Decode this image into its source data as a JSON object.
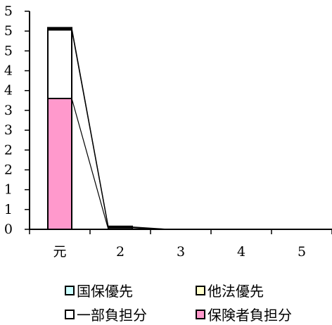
{
  "chart_data": {
    "type": "bar",
    "stacked": true,
    "categories": [
      "元",
      "2",
      "3",
      "4",
      "5"
    ],
    "y_tick_labels": [
      "0",
      "1",
      "1",
      "2",
      "2",
      "3",
      "3",
      "4",
      "4",
      "5",
      "5",
      "5"
    ],
    "ylim": [
      0,
      5.5
    ],
    "grid": false,
    "legend_position": "bottom",
    "series": [
      {
        "name": "保険者負担分",
        "color": "#ff99cc",
        "values": [
          3.3,
          0,
          0,
          0,
          0
        ]
      },
      {
        "name": "一部負担分",
        "color": "#ffffff",
        "values": [
          1.73,
          0.04,
          0,
          0,
          0
        ]
      },
      {
        "name": "他法優先",
        "color": "#ffffcc",
        "values": [
          0.02,
          0,
          0,
          0,
          0
        ]
      },
      {
        "name": "国保優先",
        "color": "#ccffff",
        "values": [
          0.03,
          0.02,
          0,
          0,
          0
        ]
      }
    ],
    "legend": [
      {
        "label": "国保優先",
        "color": "#ccffff"
      },
      {
        "label": "他法優先",
        "color": "#ffffcc"
      },
      {
        "label": "一部負担分",
        "color": "#ffffff"
      },
      {
        "label": "保険者負担分",
        "color": "#ff99cc"
      }
    ]
  }
}
